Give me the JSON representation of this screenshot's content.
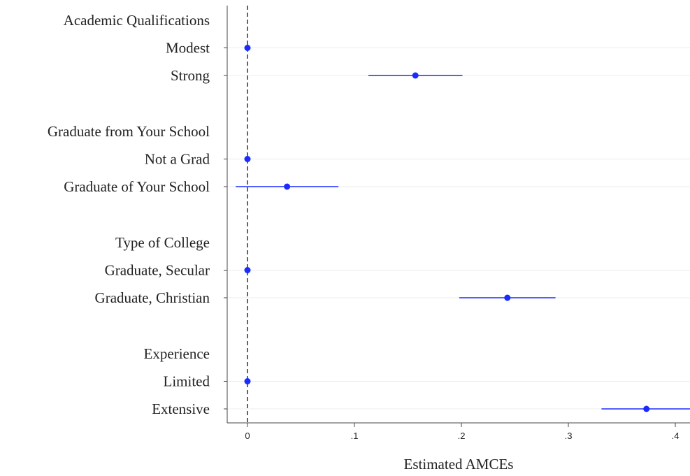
{
  "chart_data": {
    "type": "scatter",
    "subtype": "coefficient-plot",
    "title": "",
    "xlabel": "Estimated AMCEs",
    "ylabel": "",
    "xlim": [
      -0.02,
      0.415
    ],
    "xticks": [
      0,
      0.1,
      0.2,
      0.3,
      0.4
    ],
    "xtick_labels": [
      "0",
      ".1",
      ".2",
      ".3",
      ".4"
    ],
    "reference_line": {
      "x": 0,
      "style": "dashed"
    },
    "grid": "horizontal",
    "marker_color": "#1a2bff",
    "groups": [
      {
        "heading": "Academic Qualifications",
        "levels": [
          {
            "label": "Modest",
            "estimate": 0,
            "ci_low": 0,
            "ci_high": 0
          },
          {
            "label": "Strong",
            "estimate": 0.157,
            "ci_low": 0.113,
            "ci_high": 0.201
          }
        ]
      },
      {
        "heading": "Graduate from Your School",
        "levels": [
          {
            "label": "Not a Grad",
            "estimate": 0,
            "ci_low": 0,
            "ci_high": 0
          },
          {
            "label": "Graduate of Your School",
            "estimate": 0.037,
            "ci_low": -0.011,
            "ci_high": 0.085
          }
        ]
      },
      {
        "heading": "Type of College",
        "levels": [
          {
            "label": "Graduate, Secular",
            "estimate": 0,
            "ci_low": 0,
            "ci_high": 0
          },
          {
            "label": "Graduate, Christian",
            "estimate": 0.243,
            "ci_low": 0.198,
            "ci_high": 0.288
          }
        ]
      },
      {
        "heading": "Experience",
        "levels": [
          {
            "label": "Limited",
            "estimate": 0,
            "ci_low": 0,
            "ci_high": 0
          },
          {
            "label": "Extensive",
            "estimate": 0.373,
            "ci_low": 0.331,
            "ci_high": 0.415
          }
        ]
      }
    ]
  }
}
